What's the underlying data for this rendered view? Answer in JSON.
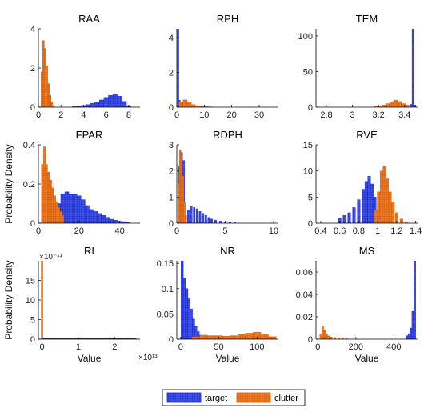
{
  "figure": {
    "ylabel": "Probability Density",
    "xlabel": "Value",
    "legend": {
      "placement": "bottom-center",
      "items": [
        "target",
        "clutter"
      ]
    }
  },
  "colors": {
    "target_edge": "#1f24c8",
    "target_fill": "#3d52e6",
    "clutter_edge": "#c85a10",
    "clutter_fill": "#f07a22"
  },
  "chart_data": [
    {
      "type": "histogram",
      "title": "RAA",
      "xlim": [
        0,
        9
      ],
      "ylim": [
        0,
        4
      ],
      "xticks": [
        0,
        2,
        4,
        6,
        8
      ],
      "yticks": [
        0,
        2,
        4
      ],
      "showYLabel": false,
      "showXLabel": false,
      "series": [
        {
          "name": "target",
          "x": [
            3.2,
            3.6,
            4.0,
            4.4,
            4.8,
            5.2,
            5.6,
            6.0,
            6.4,
            6.8,
            7.2,
            7.6,
            8.0
          ],
          "values": [
            0.03,
            0.06,
            0.09,
            0.13,
            0.2,
            0.27,
            0.37,
            0.5,
            0.6,
            0.66,
            0.56,
            0.3,
            0.08
          ]
        },
        {
          "name": "clutter",
          "x": [
            0.3,
            0.45,
            0.6,
            0.75,
            0.9,
            1.05,
            1.2,
            1.35
          ],
          "values": [
            1.8,
            3.4,
            3.0,
            2.1,
            1.2,
            0.6,
            0.25,
            0.08
          ]
        }
      ]
    },
    {
      "type": "histogram",
      "title": "RPH",
      "xlim": [
        0,
        37
      ],
      "ylim": [
        0,
        4.5
      ],
      "xticks": [
        0,
        10,
        20,
        30
      ],
      "yticks": [
        0,
        2,
        4
      ],
      "showYLabel": false,
      "showXLabel": false,
      "series": [
        {
          "name": "target",
          "x": [
            0.5,
            1.0
          ],
          "values": [
            4.5,
            0.4
          ]
        },
        {
          "name": "clutter",
          "x": [
            1.5,
            3,
            4.5,
            6,
            7.5,
            9,
            10.5,
            12
          ],
          "values": [
            0.3,
            0.42,
            0.3,
            0.15,
            0.08,
            0.05,
            0.03,
            0.02
          ]
        }
      ]
    },
    {
      "type": "histogram",
      "title": "TEM",
      "xlim": [
        2.72,
        3.5
      ],
      "ylim": [
        0,
        110
      ],
      "xticks": [
        2.8,
        3,
        3.2,
        3.4
      ],
      "yticks": [
        0,
        50,
        100
      ],
      "showYLabel": false,
      "showXLabel": false,
      "series": [
        {
          "name": "target",
          "x": [
            3.45,
            3.465,
            3.48
          ],
          "values": [
            4,
            110,
            3
          ]
        },
        {
          "name": "clutter",
          "x": [
            3.18,
            3.21,
            3.24,
            3.27,
            3.3,
            3.33,
            3.36,
            3.39,
            3.42
          ],
          "values": [
            1,
            2,
            3,
            5,
            7,
            10,
            8,
            5,
            3
          ]
        }
      ]
    },
    {
      "type": "histogram",
      "title": "FPAR",
      "xlim": [
        0,
        50
      ],
      "ylim": [
        0,
        0.4
      ],
      "xticks": [
        0,
        20,
        40
      ],
      "yticks": [
        0,
        0.2,
        0.4
      ],
      "showYLabel": true,
      "showXLabel": false,
      "series": [
        {
          "name": "target",
          "x": [
            10,
            12,
            14,
            16,
            18,
            20,
            22,
            24,
            26,
            28,
            30,
            32,
            34,
            36,
            38,
            40,
            42,
            44
          ],
          "values": [
            0.1,
            0.15,
            0.16,
            0.15,
            0.15,
            0.14,
            0.12,
            0.09,
            0.07,
            0.06,
            0.05,
            0.04,
            0.03,
            0.02,
            0.015,
            0.01,
            0.008,
            0.005
          ]
        },
        {
          "name": "clutter",
          "x": [
            2,
            3,
            4,
            5,
            6,
            7,
            8,
            9,
            10,
            11,
            12
          ],
          "values": [
            0.3,
            0.39,
            0.3,
            0.26,
            0.22,
            0.18,
            0.14,
            0.11,
            0.08,
            0.06,
            0.04
          ]
        }
      ]
    },
    {
      "type": "histogram",
      "title": "RDPH",
      "xlim": [
        0,
        10.5
      ],
      "ylim": [
        0,
        3
      ],
      "xticks": [
        0,
        5,
        10
      ],
      "yticks": [
        0,
        1,
        2,
        3
      ],
      "showYLabel": false,
      "showXLabel": false,
      "series": [
        {
          "name": "target",
          "x": [
            0.3,
            0.5,
            0.7,
            1.2,
            1.5,
            1.8,
            2.1,
            2.4,
            2.7,
            3.0,
            3.3,
            3.6,
            4.0,
            4.5,
            5.0,
            5.5,
            6.0
          ],
          "values": [
            2.2,
            2.7,
            2.4,
            0.5,
            0.65,
            0.6,
            0.55,
            0.45,
            0.38,
            0.3,
            0.22,
            0.16,
            0.12,
            0.08,
            0.05,
            0.03,
            0.02
          ]
        },
        {
          "name": "clutter",
          "x": [
            0.2,
            0.35,
            0.5,
            0.65,
            0.8,
            0.95
          ],
          "values": [
            1.5,
            2.8,
            2.6,
            1.8,
            0.8,
            0.3
          ]
        }
      ]
    },
    {
      "type": "histogram",
      "title": "RVE",
      "xlim": [
        0.35,
        1.42
      ],
      "ylim": [
        0,
        15
      ],
      "xticks": [
        0.4,
        0.6,
        0.8,
        1,
        1.2,
        1.4
      ],
      "yticks": [
        0,
        5,
        10,
        15
      ],
      "showYLabel": false,
      "showXLabel": false,
      "series": [
        {
          "name": "target",
          "x": [
            0.6,
            0.65,
            0.7,
            0.75,
            0.8,
            0.85,
            0.88,
            0.91,
            0.94,
            0.97,
            1.0
          ],
          "values": [
            1.0,
            1.5,
            2.0,
            3.0,
            4.5,
            6.5,
            8.0,
            9.0,
            7.5,
            5.0,
            2.0
          ]
        },
        {
          "name": "clutter",
          "x": [
            0.98,
            1.01,
            1.04,
            1.07,
            1.1,
            1.13,
            1.16,
            1.2,
            1.25,
            1.3
          ],
          "values": [
            2.5,
            6.0,
            10.0,
            11.0,
            8.5,
            6.0,
            4.0,
            2.0,
            0.8,
            0.3
          ]
        }
      ]
    },
    {
      "type": "histogram",
      "title": "RI",
      "xlim": [
        -1000000000000,
        27000000000000
      ],
      "ylim": [
        0,
        20
      ],
      "xticks": [
        0,
        10000000000000,
        20000000000000
      ],
      "xtickLabels": [
        "0",
        "1",
        "2"
      ],
      "yticks": [
        0,
        5,
        10,
        15
      ],
      "yexp": "×10⁻¹¹",
      "xexp": "×10¹³",
      "showYLabel": true,
      "showXLabel": true,
      "series": [
        {
          "name": "target",
          "line": {
            "x": [
              0,
              26000000000000
            ],
            "y": [
              0.1,
              0.1
            ]
          }
        },
        {
          "name": "clutter",
          "x": [
            0
          ],
          "values": [
            20
          ]
        }
      ]
    },
    {
      "type": "histogram",
      "title": "NR",
      "xlim": [
        -5,
        128
      ],
      "ylim": [
        0,
        0.155
      ],
      "xticks": [
        0,
        50,
        100
      ],
      "yticks": [
        0,
        0.05,
        0.1,
        0.15
      ],
      "showYLabel": false,
      "showXLabel": true,
      "series": [
        {
          "name": "target",
          "x": [
            2,
            5,
            8,
            11,
            14,
            17,
            20,
            23,
            26,
            29
          ],
          "values": [
            0.155,
            0.12,
            0.1,
            0.08,
            0.06,
            0.04,
            0.025,
            0.015,
            0.008,
            0.004
          ]
        },
        {
          "name": "clutter",
          "x": [
            20,
            30,
            40,
            50,
            60,
            70,
            80,
            90,
            100,
            110,
            120
          ],
          "values": [
            0.005,
            0.008,
            0.007,
            0.007,
            0.006,
            0.007,
            0.009,
            0.012,
            0.014,
            0.01,
            0.005
          ]
        }
      ]
    },
    {
      "type": "histogram",
      "title": "MS",
      "xlim": [
        -10,
        525
      ],
      "ylim": [
        0,
        0.07
      ],
      "xticks": [
        0,
        200,
        400
      ],
      "yticks": [
        0,
        0.02,
        0.04,
        0.06
      ],
      "showYLabel": false,
      "showXLabel": true,
      "series": [
        {
          "name": "target",
          "x": [
            470,
            480,
            490,
            500,
            510
          ],
          "values": [
            0.003,
            0.005,
            0.01,
            0.025,
            0.07
          ]
        },
        {
          "name": "clutter",
          "x": [
            15,
            25,
            35,
            45,
            55,
            70,
            90,
            110,
            130,
            150
          ],
          "values": [
            0.004,
            0.012,
            0.008,
            0.005,
            0.003,
            0.002,
            0.0015,
            0.001,
            0.001,
            0.0008
          ]
        }
      ]
    }
  ]
}
